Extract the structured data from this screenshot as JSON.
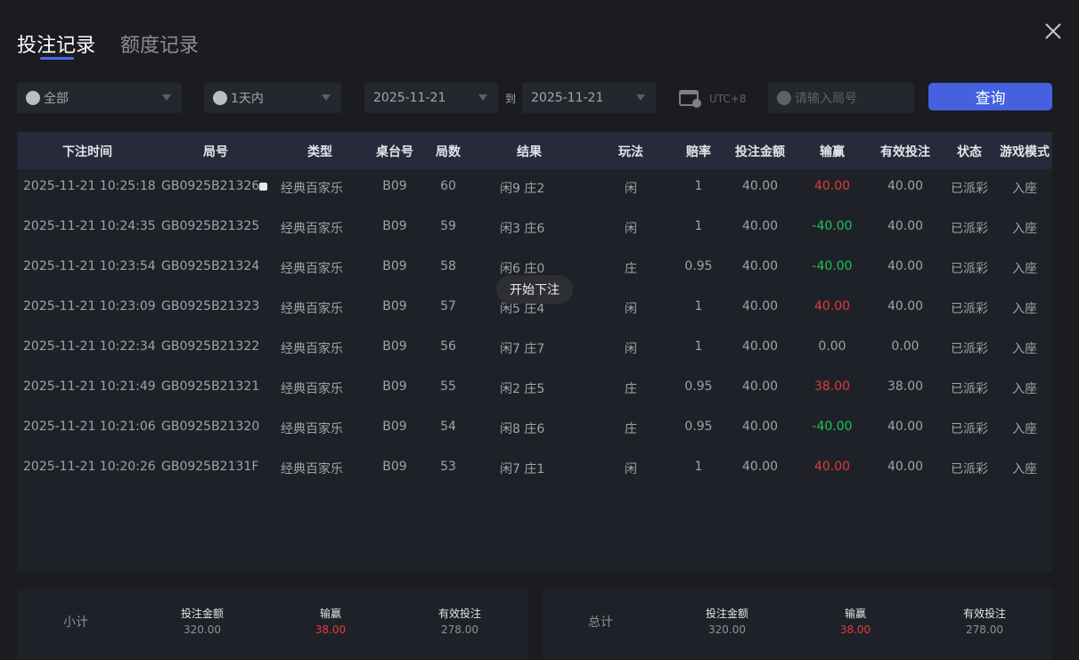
{
  "tabs": [
    {
      "label": "投注记录",
      "active": true
    },
    {
      "label": "额度记录",
      "active": false
    }
  ],
  "filters": {
    "game_type": "全部",
    "time_range": "1天内",
    "start_date": "2025-11-21",
    "to_label": "到",
    "end_date": "2025-11-21",
    "timezone": "UTC+8",
    "round_placeholder": "请输入局号",
    "query_label": "查询"
  },
  "table": {
    "headers": [
      "下注时间",
      "局号",
      "类型",
      "桌台号",
      "局数",
      "结果",
      "玩法",
      "赔率",
      "投注金额",
      "输赢",
      "有效投注",
      "状态",
      "游戏模式"
    ],
    "rows": [
      {
        "time": "2025-11-21 10:25:18",
        "round": "GB0925B21326",
        "type": "经典百家乐",
        "table": "B09",
        "num": "60",
        "result": "闲9 庄2",
        "play": "闲",
        "odds": "1",
        "amount": "40.00",
        "win": "40.00",
        "valid": "40.00",
        "status": "已派彩",
        "mode": "入座"
      },
      {
        "time": "2025-11-21 10:24:35",
        "round": "GB0925B21325",
        "type": "经典百家乐",
        "table": "B09",
        "num": "59",
        "result": "闲3 庄6",
        "play": "闲",
        "odds": "1",
        "amount": "40.00",
        "win": "-40.00",
        "valid": "40.00",
        "status": "已派彩",
        "mode": "入座"
      },
      {
        "time": "2025-11-21 10:23:54",
        "round": "GB0925B21324",
        "type": "经典百家乐",
        "table": "B09",
        "num": "58",
        "result": "闲6 庄0",
        "play": "庄",
        "odds": "0.95",
        "amount": "40.00",
        "win": "-40.00",
        "valid": "40.00",
        "status": "已派彩",
        "mode": "入座"
      },
      {
        "time": "2025-11-21 10:23:09",
        "round": "GB0925B21323",
        "type": "经典百家乐",
        "table": "B09",
        "num": "57",
        "result": "闲5 庄4",
        "play": "闲",
        "odds": "1",
        "amount": "40.00",
        "win": "40.00",
        "valid": "40.00",
        "status": "已派彩",
        "mode": "入座"
      },
      {
        "time": "2025-11-21 10:22:34",
        "round": "GB0925B21322",
        "type": "经典百家乐",
        "table": "B09",
        "num": "56",
        "result": "闲7 庄7",
        "play": "闲",
        "odds": "1",
        "amount": "40.00",
        "win": "0.00",
        "valid": "0.00",
        "status": "已派彩",
        "mode": "入座"
      },
      {
        "time": "2025-11-21 10:21:49",
        "round": "GB0925B21321",
        "type": "经典百家乐",
        "table": "B09",
        "num": "55",
        "result": "闲2 庄5",
        "play": "庄",
        "odds": "0.95",
        "amount": "40.00",
        "win": "38.00",
        "valid": "38.00",
        "status": "已派彩",
        "mode": "入座"
      },
      {
        "time": "2025-11-21 10:21:06",
        "round": "GB0925B21320",
        "type": "经典百家乐",
        "table": "B09",
        "num": "54",
        "result": "闲8 庄6",
        "play": "庄",
        "odds": "0.95",
        "amount": "40.00",
        "win": "-40.00",
        "valid": "40.00",
        "status": "已派彩",
        "mode": "入座"
      },
      {
        "time": "2025-11-21 10:20:26",
        "round": "GB0925B2131F",
        "type": "经典百家乐",
        "table": "B09",
        "num": "53",
        "result": "闲7 庄1",
        "play": "闲",
        "odds": "1",
        "amount": "40.00",
        "win": "40.00",
        "valid": "40.00",
        "status": "已派彩",
        "mode": "入座"
      }
    ]
  },
  "tooltip": "开始下注",
  "subtotal": {
    "label": "小计",
    "amount_label": "投注金额",
    "amount": "320.00",
    "win_label": "输赢",
    "win": "38.00",
    "valid_label": "有效投注",
    "valid": "278.00"
  },
  "total": {
    "label": "总计",
    "amount_label": "投注金额",
    "amount": "320.00",
    "win_label": "输赢",
    "win": "38.00",
    "valid_label": "有效投注",
    "valid": "278.00"
  },
  "colors": {
    "accent": "#4561e0",
    "win": "#e23c3c",
    "loss": "#1fc25a"
  }
}
